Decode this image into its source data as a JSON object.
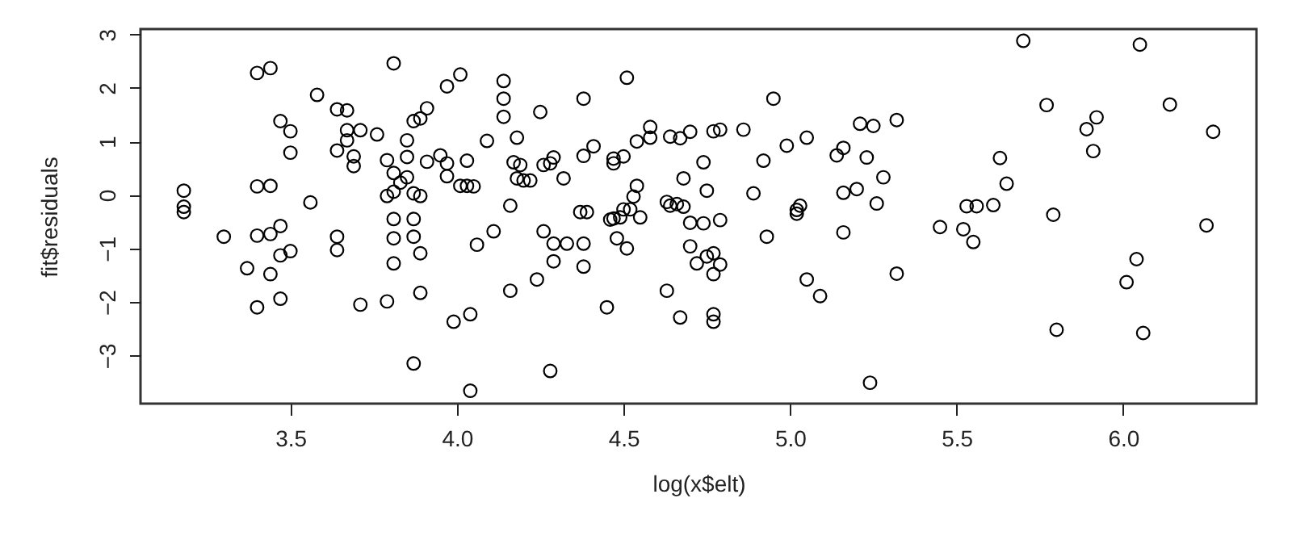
{
  "chart_data": {
    "type": "scatter",
    "xlabel": "log(x$elt)",
    "ylabel": "fit$residuals",
    "marker": "circle",
    "grid": false,
    "xlim": [
      3.05,
      6.4
    ],
    "ylim": [
      -3.9,
      3.1
    ],
    "xticks": [
      3.5,
      {
        "value": 4,
        "label": "4.0"
      },
      4.5,
      {
        "value": 5,
        "label": "5.0"
      },
      5.5,
      {
        "value": 6,
        "label": "6.0"
      }
    ],
    "yticks": [
      -3,
      -2,
      -1,
      0,
      1,
      2,
      3
    ],
    "series": [
      {
        "color": "#000000",
        "x": [
          3.18,
          3.18,
          3.18,
          3.3,
          3.4,
          3.44,
          3.4,
          3.44,
          3.4,
          3.44,
          3.47,
          3.47,
          3.5,
          3.5,
          3.37,
          3.44,
          3.47,
          3.5,
          3.4,
          3.47,
          3.56,
          3.58,
          3.64,
          3.67,
          3.67,
          3.67,
          3.71,
          3.76,
          3.64,
          3.69,
          3.69,
          3.64,
          3.64,
          3.71,
          3.79,
          3.81,
          3.79,
          3.81,
          3.85,
          3.85,
          3.85,
          3.83,
          3.81,
          3.79,
          3.87,
          3.89,
          3.81,
          3.87,
          3.81,
          3.87,
          3.89,
          3.81,
          3.89,
          3.87,
          3.87,
          3.89,
          3.91,
          3.91,
          3.95,
          3.97,
          3.97,
          4.03,
          4.01,
          4.03,
          4.05,
          3.97,
          4.01,
          4.11,
          4.06,
          4.09,
          3.99,
          4.04,
          4.04,
          4.14,
          4.14,
          4.14,
          4.18,
          4.17,
          4.19,
          4.18,
          4.2,
          4.22,
          4.16,
          4.16,
          4.25,
          4.26,
          4.28,
          4.29,
          4.32,
          4.26,
          4.29,
          4.33,
          4.29,
          4.24,
          4.28,
          4.38,
          4.41,
          4.38,
          4.37,
          4.39,
          4.38,
          4.38,
          4.45,
          4.51,
          4.47,
          4.47,
          4.5,
          4.54,
          4.58,
          4.58,
          4.64,
          4.67,
          4.7,
          4.77,
          4.79,
          4.86,
          4.95,
          4.54,
          4.53,
          4.52,
          4.5,
          4.47,
          4.46,
          4.49,
          4.55,
          4.48,
          4.51,
          4.63,
          4.64,
          4.66,
          4.68,
          4.68,
          4.74,
          4.75,
          4.7,
          4.74,
          4.79,
          4.7,
          4.72,
          4.75,
          4.77,
          4.79,
          4.77,
          4.63,
          4.67,
          4.77,
          4.77,
          4.89,
          4.92,
          4.99,
          5.05,
          5.03,
          5.02,
          5.02,
          4.93,
          5.05,
          5.09,
          5.14,
          5.16,
          5.21,
          5.25,
          5.23,
          5.28,
          5.16,
          5.2,
          5.26,
          5.16,
          5.24,
          5.32,
          5.32,
          5.45,
          5.52,
          5.55,
          5.53,
          5.56,
          5.61,
          5.63,
          5.65,
          5.7,
          5.77,
          5.79,
          5.8,
          5.89,
          5.92,
          5.91,
          6.05,
          6.14,
          6.27,
          6.25,
          6.04,
          6.01,
          6.06
        ],
        "values": [
          0.08,
          -0.22,
          -0.32,
          -0.78,
          2.28,
          2.37,
          0.16,
          0.17,
          -0.76,
          -0.73,
          -0.58,
          1.38,
          1.19,
          0.79,
          -1.37,
          -1.48,
          -1.13,
          -1.05,
          -2.1,
          -1.94,
          -0.14,
          1.87,
          1.6,
          1.58,
          1.21,
          1.02,
          1.21,
          1.13,
          0.83,
          0.72,
          0.54,
          -0.78,
          -1.03,
          -2.05,
          -1.99,
          2.46,
          0.65,
          0.41,
          1.02,
          0.71,
          0.33,
          0.23,
          0.06,
          -0.02,
          0.03,
          -0.02,
          -0.45,
          -0.45,
          -0.81,
          -0.78,
          -1.09,
          -1.28,
          -1.83,
          -3.15,
          1.38,
          1.43,
          1.62,
          0.62,
          0.74,
          0.59,
          0.35,
          0.64,
          0.17,
          0.17,
          0.16,
          2.03,
          2.25,
          -0.68,
          -0.93,
          1.01,
          -2.37,
          -2.23,
          -3.66,
          2.13,
          1.8,
          1.46,
          1.07,
          0.61,
          0.56,
          0.31,
          0.27,
          0.27,
          -0.2,
          -1.79,
          1.55,
          0.56,
          0.59,
          0.7,
          0.31,
          -0.68,
          -0.91,
          -0.91,
          -1.24,
          -1.58,
          -3.29,
          1.8,
          0.91,
          0.73,
          -0.32,
          -0.32,
          -0.91,
          -1.34,
          -2.1,
          2.19,
          0.68,
          0.59,
          0.72,
          1.0,
          1.07,
          1.27,
          1.09,
          1.06,
          1.18,
          1.19,
          1.22,
          1.22,
          1.8,
          0.17,
          -0.03,
          -0.27,
          -0.27,
          -0.44,
          -0.46,
          -0.42,
          -0.42,
          -0.81,
          -1.0,
          -0.13,
          -0.2,
          -0.17,
          0.31,
          -0.22,
          0.61,
          0.08,
          -0.52,
          -0.53,
          -0.47,
          -0.96,
          -1.28,
          -1.15,
          -1.09,
          -1.3,
          -1.48,
          -1.79,
          -2.29,
          -2.23,
          -2.37,
          0.03,
          0.64,
          0.92,
          1.07,
          -0.2,
          -0.28,
          -0.35,
          -0.78,
          -1.58,
          -1.89,
          0.74,
          0.88,
          1.33,
          1.29,
          0.7,
          0.33,
          0.04,
          0.11,
          -0.16,
          -0.7,
          -3.51,
          1.4,
          -1.47,
          -0.6,
          -0.64,
          -0.88,
          -0.21,
          -0.21,
          -0.19,
          0.69,
          0.21,
          2.88,
          1.68,
          -0.37,
          -2.52,
          1.23,
          1.45,
          0.82,
          2.81,
          1.69,
          1.18,
          -0.57,
          -1.2,
          -1.63,
          -2.58
        ]
      }
    ]
  }
}
